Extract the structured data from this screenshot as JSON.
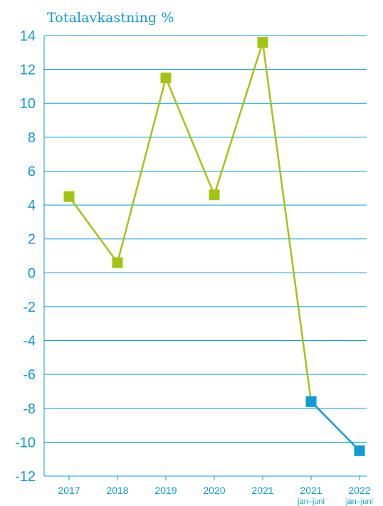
{
  "chart_data": {
    "type": "line",
    "title": "Totalavkastning %",
    "xlabel": "",
    "ylabel": "",
    "ylim": [
      -12,
      14
    ],
    "y_ticks": [
      14,
      12,
      10,
      8,
      6,
      4,
      2,
      0,
      -2,
      -4,
      -6,
      -8,
      -10,
      -12
    ],
    "categories": [
      {
        "year": "2017",
        "sub": ""
      },
      {
        "year": "2018",
        "sub": ""
      },
      {
        "year": "2019",
        "sub": ""
      },
      {
        "year": "2020",
        "sub": ""
      },
      {
        "year": "2021",
        "sub": ""
      },
      {
        "year": "2021",
        "sub": "jan–juni"
      },
      {
        "year": "2022",
        "sub": "jan–juni"
      }
    ],
    "series": [
      {
        "color": "#a3c413",
        "values": [
          4.5,
          0.6,
          11.5,
          4.6,
          13.6,
          -7.6,
          null
        ]
      },
      {
        "color": "#0f9ad8",
        "values": [
          null,
          null,
          null,
          null,
          null,
          -7.6,
          -10.5
        ]
      }
    ],
    "grid": true,
    "axis_color": "#0f9ad8"
  }
}
